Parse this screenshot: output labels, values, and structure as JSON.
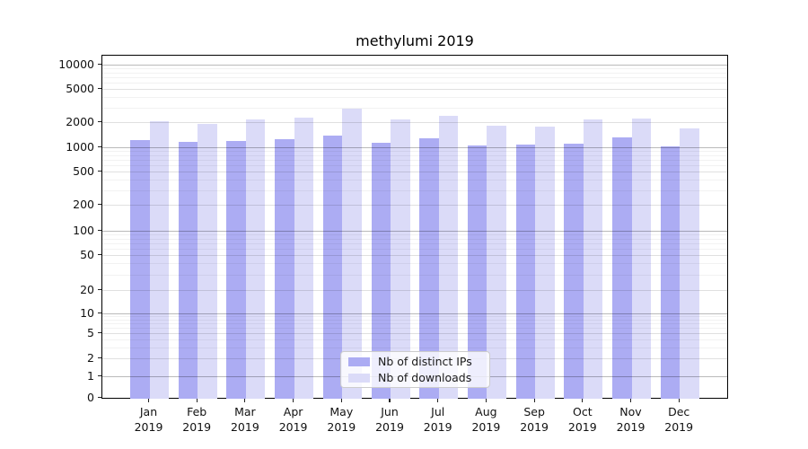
{
  "title": "methylumi 2019",
  "chart_data": {
    "type": "bar",
    "title": "methylumi 2019",
    "categories": [
      "Jan 2019",
      "Feb 2019",
      "Mar 2019",
      "Apr 2019",
      "May 2019",
      "Jun 2019",
      "Jul 2019",
      "Aug 2019",
      "Sep 2019",
      "Oct 2019",
      "Nov 2019",
      "Dec 2019"
    ],
    "series": [
      {
        "name": "Nb of distinct IPs",
        "color": "#acacf3",
        "values": [
          1220,
          1160,
          1190,
          1250,
          1380,
          1130,
          1280,
          1050,
          1070,
          1110,
          1320,
          1030
        ]
      },
      {
        "name": "Nb of downloads",
        "color": "#dbdbf8",
        "values": [
          2050,
          1890,
          2160,
          2270,
          2930,
          2160,
          2400,
          1810,
          1750,
          2180,
          2210,
          1680
        ]
      }
    ],
    "yscale": "symlog",
    "y_ticks": [
      0,
      1,
      2,
      5,
      10,
      20,
      50,
      100,
      200,
      500,
      1000,
      2000,
      5000,
      10000
    ],
    "ylim": [
      0,
      12800
    ],
    "xlabel": "",
    "ylabel": "",
    "grid": true,
    "legend_position": "inside-bottom-center"
  }
}
